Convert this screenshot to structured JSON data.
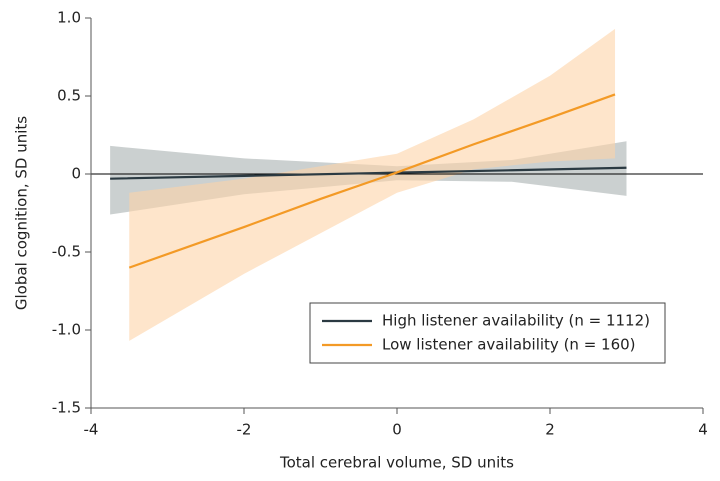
{
  "chart_data": {
    "type": "line",
    "xlabel": "Total cerebral volume, SD units",
    "ylabel": "Global cognition, SD units",
    "xlim": [
      -4,
      4
    ],
    "xticks": [
      -4,
      -2,
      0,
      2,
      4
    ],
    "ylim": [
      -1.5,
      1.0
    ],
    "yticks": [
      {
        "value": 1,
        "label": "1.0"
      },
      0.5,
      0,
      -0.5,
      {
        "value": -1,
        "label": "-1.0"
      },
      -1.5
    ],
    "legend": "lower right",
    "series": [
      {
        "name": "High listener availability (n = 1112)",
        "color": "#2b3a42",
        "band_color": "#a9b1b1",
        "x": [
          -3.75,
          -2,
          0,
          1.5,
          3
        ],
        "values": [
          -0.03,
          -0.012,
          0.009,
          0.024,
          0.04
        ],
        "upper": [
          0.18,
          0.1,
          0.05,
          0.09,
          0.21
        ],
        "lower": [
          -0.26,
          -0.13,
          -0.04,
          -0.05,
          -0.14
        ]
      },
      {
        "name": "Low listener availability (n = 160)",
        "color": "#f39a26",
        "band_color": "#fdd3a8",
        "x": [
          -3.5,
          -2,
          -1,
          0,
          1,
          2,
          2.85
        ],
        "values": [
          -0.6,
          -0.34,
          -0.16,
          0.01,
          0.19,
          0.36,
          0.51
        ],
        "upper": [
          -0.12,
          -0.03,
          0.05,
          0.13,
          0.35,
          0.63,
          0.93
        ],
        "lower": [
          -1.07,
          -0.64,
          -0.38,
          -0.12,
          0.03,
          0.08,
          0.1
        ]
      }
    ]
  }
}
